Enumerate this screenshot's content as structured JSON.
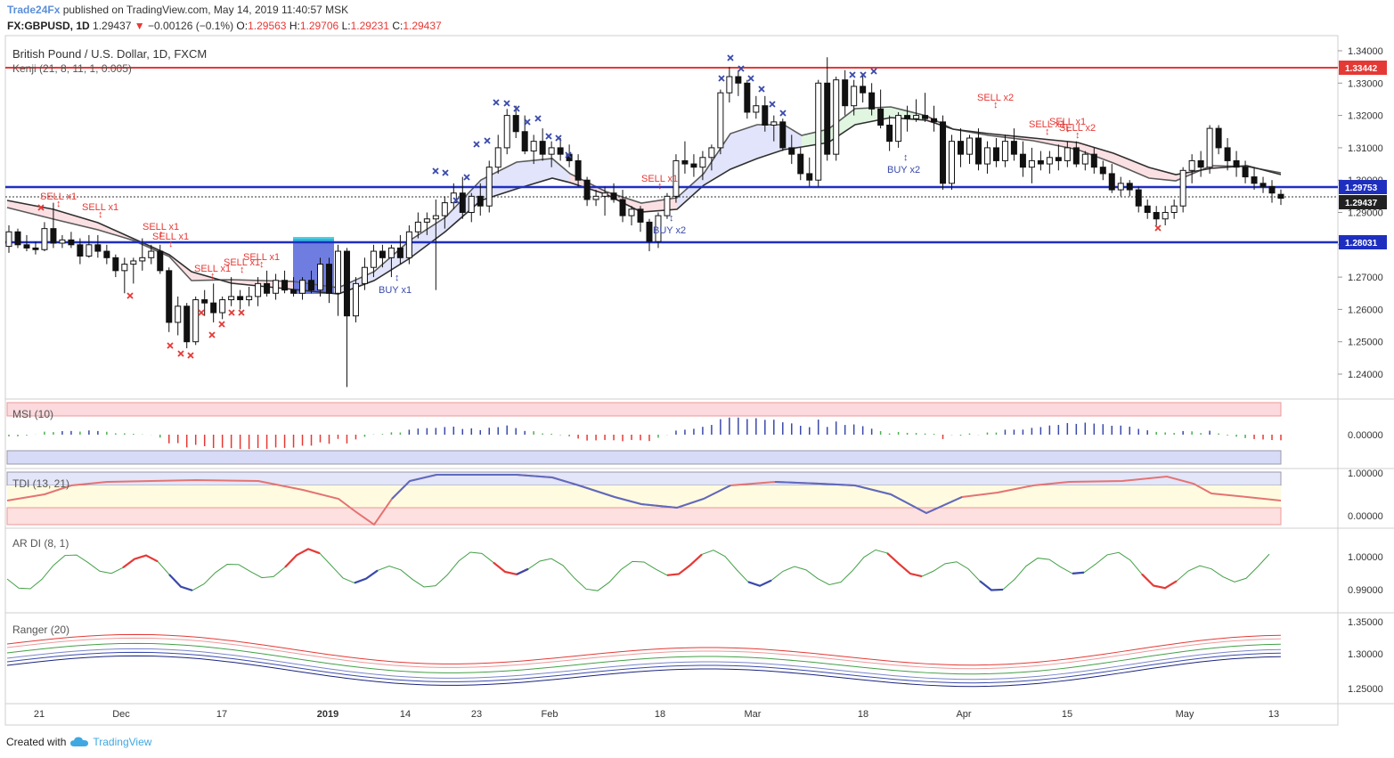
{
  "header": {
    "brand": "Trade24Fx",
    "published": " published on TradingView.com, May 14, 2019 11:40:57 MSK",
    "symbol": "FX:GBPUSD, 1D",
    "last": "1.29437",
    "change": "−0.00126 (−0.1%)",
    "o_label": "O:",
    "o_val": "1.29563",
    "h_label": "H:",
    "h_val": "1.29706",
    "l_label": "L:",
    "l_val": "1.29231",
    "c_label": "C:",
    "c_val": "1.29437"
  },
  "main_pane": {
    "title": "British Pound / U.S. Dollar, 1D, FXCM",
    "indicator": "Kenji (21, 8, 11, 1, 0.005)",
    "price_ticks": [
      "1.34000",
      "1.33000",
      "1.32000",
      "1.31000",
      "1.30000",
      "1.29000",
      "1.28000",
      "1.27000",
      "1.26000",
      "1.25000",
      "1.24000"
    ],
    "price_tags": [
      {
        "label": "1.33442",
        "color": "#e53935"
      },
      {
        "label": "1.29753",
        "color": "#1e2fbf"
      },
      {
        "label": "1.29437",
        "color": "#222222"
      },
      {
        "label": "1.28031",
        "color": "#1e2fbf"
      }
    ],
    "signals": [
      {
        "text": "SELL x1",
        "color": "#e53935"
      },
      {
        "text": "SELL x1",
        "color": "#e53935"
      },
      {
        "text": "SELL x1",
        "color": "#e53935"
      },
      {
        "text": "SELL x1",
        "color": "#e53935"
      },
      {
        "text": "SELL x1",
        "color": "#e53935"
      },
      {
        "text": "SELL x1",
        "color": "#e53935"
      },
      {
        "text": "SELL x1",
        "color": "#e53935"
      },
      {
        "text": "BUY x1",
        "color": "#3949ab"
      },
      {
        "text": "SELL x1",
        "color": "#e53935"
      },
      {
        "text": "BUY x2",
        "color": "#3949ab"
      },
      {
        "text": "BUY x2",
        "color": "#3949ab"
      },
      {
        "text": "SELL x2",
        "color": "#e53935"
      },
      {
        "text": "SELL x1",
        "color": "#e53935"
      },
      {
        "text": "SELL x1",
        "color": "#e53935"
      },
      {
        "text": "SELL x2",
        "color": "#e53935"
      }
    ]
  },
  "msi": {
    "title": "MSI (10)",
    "ticks": [
      "0.00000"
    ]
  },
  "tdi": {
    "title": "TDI (13, 21)",
    "ticks": [
      "1.00000",
      "0.00000"
    ]
  },
  "ardi": {
    "title": "AR DI (8, 1)",
    "ticks": [
      "1.00000",
      "0.99000"
    ]
  },
  "ranger": {
    "title": "Ranger (20)",
    "ticks": [
      "1.35000",
      "1.30000",
      "1.25000"
    ]
  },
  "time_axis": [
    "21",
    "Dec",
    "17",
    "2019",
    "14",
    "23",
    "Feb",
    "18",
    "Mar",
    "18",
    "Apr",
    "15",
    "May",
    "13"
  ],
  "footer": {
    "created": "Created with",
    "brand": "TradingView"
  },
  "colors": {
    "red_line": "#e53935",
    "blue_line": "#1e2fbf",
    "buy": "#3949ab",
    "sell": "#e53935"
  }
}
